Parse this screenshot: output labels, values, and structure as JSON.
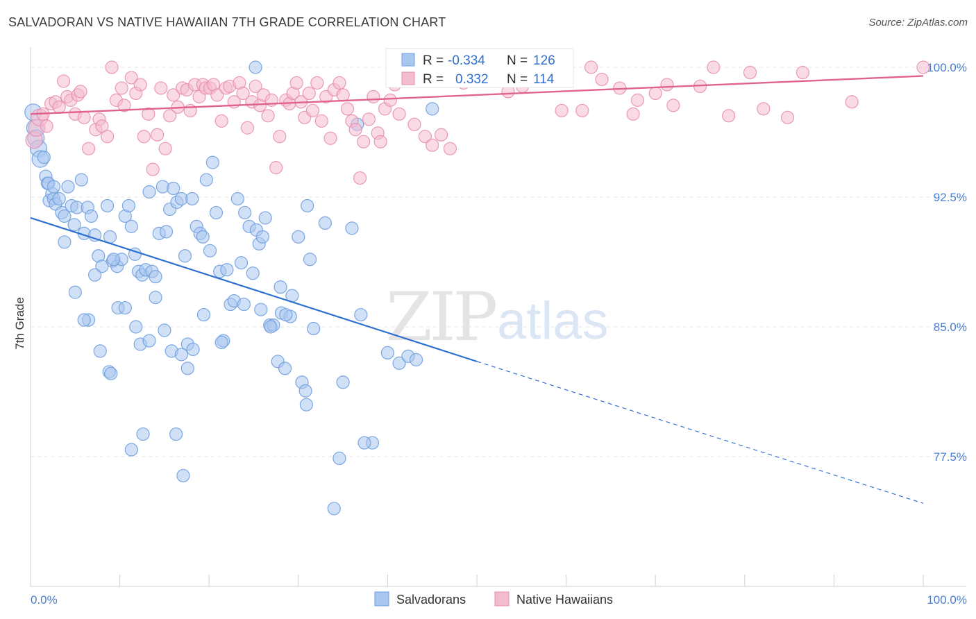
{
  "header": {
    "title": "SALVADORAN VS NATIVE HAWAIIAN 7TH GRADE CORRELATION CHART",
    "source": "Source: ZipAtlas.com"
  },
  "watermark": {
    "zip": "ZIP",
    "atlas": "atlas"
  },
  "chart_data": {
    "type": "scatter",
    "ylabel": "7th Grade",
    "x_tick_labels": [
      "0.0%",
      "100.0%"
    ],
    "y_tick_labels": [
      "100.0%",
      "92.5%",
      "85.0%",
      "77.5%"
    ],
    "y_ticks": [
      100.0,
      92.5,
      85.0,
      77.5
    ],
    "xlim": [
      0,
      100
    ],
    "ylim": [
      71.0,
      101.0
    ],
    "grid": true,
    "legend_position": "top-center",
    "colors": {
      "salvadorans": "#6f9ee0",
      "salvadorans_fill": "#a9c6ef",
      "hawaiians": "#e88fae",
      "hawaiians_fill": "#f4bccf",
      "blue_line": "#2f6fd0",
      "pink_line": "#e0628d",
      "tick_label": "#4a7fcf"
    },
    "legend": [
      {
        "r_label": "R =",
        "r_value": "-0.334",
        "n_label": "N =",
        "n_value": "126"
      },
      {
        "r_label": "R =",
        "r_value": "0.332",
        "n_label": "N =",
        "n_value": "114"
      }
    ],
    "bottom_legend": [
      "Salvadorans",
      "Native Hawaiians"
    ],
    "trend_lines": {
      "salvadorans": {
        "x0": 0,
        "y0": 91.3,
        "x1": 50,
        "y1": 83.0,
        "dash_x1": 100,
        "dash_y1": 74.8
      },
      "hawaiians": {
        "x0": 0,
        "y0": 97.3,
        "x1": 100,
        "y1": 99.5
      }
    },
    "series": [
      {
        "name": "Salvadorans",
        "points": [
          [
            0.3,
            97.4
          ],
          [
            0.5,
            96.5
          ],
          [
            0.6,
            95.9
          ],
          [
            0.9,
            95.3
          ],
          [
            1.1,
            94.7
          ],
          [
            1.5,
            94.8
          ],
          [
            1.7,
            93.7
          ],
          [
            1.9,
            93.3
          ],
          [
            2.1,
            92.3
          ],
          [
            2.4,
            92.7
          ],
          [
            2.6,
            92.4
          ],
          [
            2.8,
            92.1
          ],
          [
            3.2,
            92.4
          ],
          [
            3.5,
            91.6
          ],
          [
            3.8,
            91.4
          ],
          [
            2.0,
            93.3
          ],
          [
            2.6,
            93.1
          ],
          [
            4.2,
            93.1
          ],
          [
            4.6,
            92.0
          ],
          [
            4.9,
            90.9
          ],
          [
            5.2,
            91.9
          ],
          [
            5.7,
            93.5
          ],
          [
            6.0,
            90.4
          ],
          [
            6.4,
            91.9
          ],
          [
            6.8,
            91.4
          ],
          [
            7.2,
            90.3
          ],
          [
            7.6,
            89.1
          ],
          [
            8.0,
            88.5
          ],
          [
            8.6,
            92.0
          ],
          [
            8.9,
            90.2
          ],
          [
            9.2,
            88.8
          ],
          [
            9.7,
            88.5
          ],
          [
            10.2,
            88.9
          ],
          [
            10.6,
            91.4
          ],
          [
            11.0,
            92.0
          ],
          [
            11.3,
            90.8
          ],
          [
            11.7,
            89.2
          ],
          [
            12.1,
            88.2
          ],
          [
            12.5,
            88.0
          ],
          [
            12.9,
            88.3
          ],
          [
            13.3,
            92.8
          ],
          [
            13.6,
            88.2
          ],
          [
            14.0,
            87.9
          ],
          [
            14.4,
            90.4
          ],
          [
            14.8,
            93.1
          ],
          [
            15.2,
            90.5
          ],
          [
            15.6,
            91.8
          ],
          [
            16.0,
            93.0
          ],
          [
            16.4,
            92.2
          ],
          [
            16.9,
            92.4
          ],
          [
            17.3,
            89.1
          ],
          [
            17.6,
            84.0
          ],
          [
            18.1,
            92.4
          ],
          [
            18.6,
            90.8
          ],
          [
            19.0,
            90.4
          ],
          [
            19.3,
            90.2
          ],
          [
            19.7,
            93.5
          ],
          [
            20.1,
            89.4
          ],
          [
            20.4,
            94.5
          ],
          [
            20.8,
            91.6
          ],
          [
            21.2,
            88.2
          ],
          [
            21.6,
            84.2
          ],
          [
            22.0,
            88.3
          ],
          [
            22.4,
            86.3
          ],
          [
            22.8,
            86.5
          ],
          [
            23.2,
            92.4
          ],
          [
            23.6,
            88.7
          ],
          [
            24.0,
            91.6
          ],
          [
            24.5,
            90.8
          ],
          [
            24.9,
            88.1
          ],
          [
            25.3,
            90.6
          ],
          [
            25.6,
            89.8
          ],
          [
            26.0,
            90.2
          ],
          [
            26.3,
            91.3
          ],
          [
            26.8,
            85.1
          ],
          [
            27.2,
            85.1
          ],
          [
            27.7,
            83.0
          ],
          [
            28.1,
            85.8
          ],
          [
            28.5,
            82.6
          ],
          [
            29.1,
            85.6
          ],
          [
            30.0,
            90.2
          ],
          [
            30.4,
            81.8
          ],
          [
            30.8,
            81.3
          ],
          [
            31.0,
            92.0
          ],
          [
            31.7,
            84.9
          ],
          [
            33.0,
            91.0
          ],
          [
            34.0,
            74.5
          ],
          [
            34.6,
            77.4
          ],
          [
            35.0,
            81.8
          ],
          [
            36.0,
            90.7
          ],
          [
            37.0,
            85.7
          ],
          [
            38.3,
            78.3
          ],
          [
            40.0,
            83.5
          ],
          [
            41.3,
            82.9
          ],
          [
            42.0,
            100.0
          ],
          [
            42.3,
            83.3
          ],
          [
            43.2,
            83.1
          ],
          [
            44.0,
            99.2
          ],
          [
            45.0,
            97.6
          ],
          [
            36.6,
            96.7
          ],
          [
            5.0,
            87.0
          ],
          [
            6.5,
            85.4
          ],
          [
            7.8,
            83.6
          ],
          [
            8.8,
            82.4
          ],
          [
            9.8,
            86.1
          ],
          [
            10.6,
            86.1
          ],
          [
            11.3,
            77.9
          ],
          [
            12.3,
            84.0
          ],
          [
            12.6,
            78.8
          ],
          [
            13.3,
            84.2
          ],
          [
            14.0,
            86.7
          ],
          [
            15.0,
            84.8
          ],
          [
            15.8,
            83.6
          ],
          [
            16.3,
            78.8
          ],
          [
            16.9,
            83.4
          ],
          [
            17.1,
            76.4
          ],
          [
            17.6,
            82.6
          ],
          [
            18.2,
            83.7
          ],
          [
            19.4,
            85.7
          ],
          [
            21.4,
            84.1
          ],
          [
            23.9,
            86.3
          ],
          [
            25.8,
            86.0
          ],
          [
            26.9,
            85.0
          ],
          [
            28.6,
            85.7
          ],
          [
            29.3,
            86.8
          ],
          [
            30.9,
            80.5
          ],
          [
            37.4,
            78.3
          ],
          [
            25.2,
            100.0
          ],
          [
            9.3,
            88.9
          ],
          [
            6.0,
            85.4
          ],
          [
            3.8,
            89.9
          ],
          [
            7.2,
            88.0
          ],
          [
            11.8,
            85.0
          ],
          [
            28.0,
            87.3
          ],
          [
            9.0,
            82.3
          ],
          [
            31.3,
            88.9
          ]
        ]
      },
      {
        "name": "Native Hawaiians",
        "points": [
          [
            0.4,
            95.8
          ],
          [
            0.7,
            96.5
          ],
          [
            1.0,
            97.1
          ],
          [
            1.4,
            97.3
          ],
          [
            1.8,
            96.6
          ],
          [
            2.3,
            97.9
          ],
          [
            2.8,
            98.0
          ],
          [
            3.2,
            97.7
          ],
          [
            3.7,
            99.2
          ],
          [
            4.1,
            98.3
          ],
          [
            4.5,
            98.1
          ],
          [
            5.0,
            97.3
          ],
          [
            5.3,
            98.4
          ],
          [
            5.6,
            98.6
          ],
          [
            6.0,
            97.1
          ],
          [
            6.5,
            95.3
          ],
          [
            7.3,
            96.4
          ],
          [
            7.7,
            97.0
          ],
          [
            8.0,
            96.6
          ],
          [
            8.6,
            96.0
          ],
          [
            9.1,
            100.0
          ],
          [
            9.6,
            98.1
          ],
          [
            10.2,
            98.8
          ],
          [
            10.5,
            97.8
          ],
          [
            11.3,
            99.4
          ],
          [
            11.8,
            98.5
          ],
          [
            12.3,
            99.0
          ],
          [
            12.7,
            96.0
          ],
          [
            13.2,
            97.3
          ],
          [
            13.7,
            94.1
          ],
          [
            14.2,
            96.1
          ],
          [
            14.6,
            98.8
          ],
          [
            15.1,
            95.3
          ],
          [
            15.6,
            97.2
          ],
          [
            16.0,
            98.4
          ],
          [
            16.5,
            97.7
          ],
          [
            17.0,
            98.8
          ],
          [
            17.5,
            98.7
          ],
          [
            17.9,
            97.5
          ],
          [
            18.4,
            99.0
          ],
          [
            18.9,
            98.3
          ],
          [
            19.3,
            99.0
          ],
          [
            19.6,
            98.8
          ],
          [
            20.1,
            98.8
          ],
          [
            20.5,
            99.0
          ],
          [
            20.9,
            98.4
          ],
          [
            21.4,
            96.9
          ],
          [
            21.9,
            98.8
          ],
          [
            22.3,
            98.9
          ],
          [
            22.8,
            98.0
          ],
          [
            23.4,
            99.1
          ],
          [
            23.8,
            98.5
          ],
          [
            24.3,
            96.5
          ],
          [
            24.8,
            98.0
          ],
          [
            25.2,
            98.9
          ],
          [
            25.7,
            97.8
          ],
          [
            26.1,
            98.4
          ],
          [
            26.6,
            97.2
          ],
          [
            27.0,
            98.1
          ],
          [
            27.5,
            94.2
          ],
          [
            27.9,
            96.0
          ],
          [
            28.6,
            98.1
          ],
          [
            29.0,
            97.9
          ],
          [
            29.4,
            98.5
          ],
          [
            29.8,
            99.1
          ],
          [
            30.3,
            98.0
          ],
          [
            30.7,
            97.1
          ],
          [
            31.2,
            98.5
          ],
          [
            31.6,
            97.5
          ],
          [
            32.1,
            99.1
          ],
          [
            32.6,
            96.9
          ],
          [
            33.1,
            98.3
          ],
          [
            33.6,
            95.9
          ],
          [
            34.0,
            98.7
          ],
          [
            34.6,
            99.1
          ],
          [
            35.0,
            98.4
          ],
          [
            35.5,
            97.6
          ],
          [
            36.0,
            96.9
          ],
          [
            36.4,
            96.4
          ],
          [
            36.9,
            93.6
          ],
          [
            37.3,
            95.7
          ],
          [
            37.9,
            97.0
          ],
          [
            38.4,
            98.3
          ],
          [
            38.9,
            96.2
          ],
          [
            39.2,
            95.7
          ],
          [
            39.7,
            97.6
          ],
          [
            40.3,
            98.1
          ],
          [
            40.8,
            99.0
          ],
          [
            41.3,
            97.3
          ],
          [
            41.8,
            99.2
          ],
          [
            42.3,
            99.5
          ],
          [
            43.0,
            96.7
          ],
          [
            44.2,
            96.0
          ],
          [
            45.0,
            95.5
          ],
          [
            46.0,
            96.1
          ],
          [
            47.0,
            95.3
          ],
          [
            48.5,
            99.1
          ],
          [
            50.2,
            99.6
          ],
          [
            52.0,
            100.0
          ],
          [
            54.0,
            99.5
          ],
          [
            56.0,
            100.0
          ],
          [
            58.0,
            100.0
          ],
          [
            60.0,
            99.4
          ],
          [
            61.8,
            97.5
          ],
          [
            64.0,
            99.3
          ],
          [
            66.0,
            98.8
          ],
          [
            68.0,
            98.1
          ],
          [
            70.0,
            98.5
          ],
          [
            72.0,
            97.8
          ],
          [
            75.0,
            98.9
          ],
          [
            76.5,
            100.0
          ],
          [
            78.2,
            97.2
          ],
          [
            80.6,
            99.7
          ],
          [
            82.1,
            97.6
          ],
          [
            84.8,
            97.1
          ],
          [
            92.0,
            98.0
          ],
          [
            100.0,
            100.0
          ],
          [
            53.5,
            98.6
          ],
          [
            86.5,
            99.7
          ],
          [
            59.5,
            97.5
          ],
          [
            62.8,
            100.0
          ],
          [
            67.5,
            97.3
          ],
          [
            71.3,
            99.0
          ],
          [
            55.1,
            98.9
          ]
        ]
      }
    ]
  }
}
